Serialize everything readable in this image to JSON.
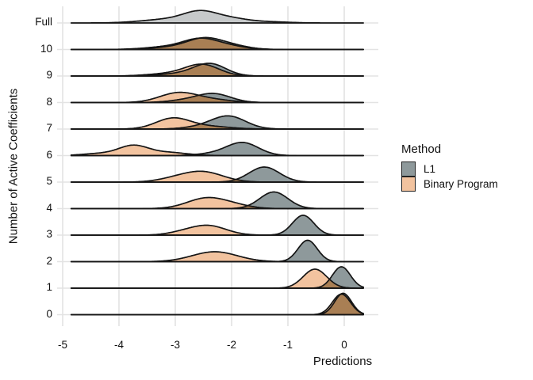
{
  "chart_data": {
    "type": "area",
    "subtype": "ridgeline-density",
    "title": "",
    "xlabel": "Predictions",
    "ylabel": "Number of Active Coefficients",
    "x_ticks": [
      -5,
      -4,
      -3,
      -2,
      -1,
      0
    ],
    "xlim": [
      -5.2,
      0.6
    ],
    "x_data_extent": [
      -4.85,
      0.34
    ],
    "grid": true,
    "legend": {
      "title": "Method",
      "position": "right",
      "entries": [
        {
          "label": "L1",
          "color": "#8E999B"
        },
        {
          "label": "Binary Program",
          "color": "#F2C39F"
        }
      ]
    },
    "colors": {
      "l1": "#8E999B",
      "binary": "#F2C39F",
      "overlap": "#A97F54",
      "full": "#C6C9CA",
      "grid": "#E3E3E3",
      "stroke": "#151515"
    },
    "rows": [
      {
        "label": "Full",
        "series": [
          {
            "method": "Full model",
            "color": "full",
            "components": [
              [
                -2.55,
                0.3,
                13
              ],
              [
                -3.15,
                0.45,
                4.5
              ],
              [
                -2.0,
                0.3,
                5
              ],
              [
                -1.35,
                0.35,
                1.5
              ]
            ]
          }
        ]
      },
      {
        "label": "10",
        "series": [
          {
            "method": "L1",
            "color": "l1",
            "components": [
              [
                -2.48,
                0.3,
                12.5
              ],
              [
                -3.0,
                0.4,
                3
              ],
              [
                -2.0,
                0.3,
                4.5
              ]
            ]
          },
          {
            "method": "Binary Program",
            "color": "binary",
            "components": [
              [
                -2.55,
                0.3,
                12
              ],
              [
                -3.1,
                0.4,
                3.5
              ],
              [
                -2.05,
                0.3,
                4
              ]
            ]
          }
        ]
      },
      {
        "label": "9",
        "series": [
          {
            "method": "L1",
            "color": "l1",
            "components": [
              [
                -2.38,
                0.28,
                15
              ],
              [
                -2.9,
                0.35,
                3
              ]
            ]
          },
          {
            "method": "Binary Program",
            "color": "binary",
            "components": [
              [
                -2.52,
                0.3,
                14
              ],
              [
                -3.1,
                0.38,
                3
              ]
            ]
          }
        ]
      },
      {
        "label": "8",
        "series": [
          {
            "method": "L1",
            "color": "l1",
            "components": [
              [
                -2.32,
                0.3,
                11
              ],
              [
                -2.85,
                0.3,
                2.5
              ]
            ]
          },
          {
            "method": "Binary Program",
            "color": "binary",
            "components": [
              [
                -2.95,
                0.33,
                12
              ],
              [
                -2.35,
                0.35,
                3.5
              ]
            ]
          }
        ]
      },
      {
        "label": "7",
        "series": [
          {
            "method": "L1",
            "color": "l1",
            "components": [
              [
                -2.05,
                0.3,
                16
              ],
              [
                -2.55,
                0.3,
                2.5
              ]
            ]
          },
          {
            "method": "Binary Program",
            "color": "binary",
            "components": [
              [
                -3.05,
                0.3,
                13
              ],
              [
                -2.45,
                0.4,
                3.5
              ]
            ]
          }
        ]
      },
      {
        "label": "6",
        "series": [
          {
            "method": "L1",
            "color": "l1",
            "components": [
              [
                -1.8,
                0.28,
                16
              ],
              [
                -2.3,
                0.3,
                2.5
              ]
            ]
          },
          {
            "method": "Binary Program",
            "color": "binary",
            "components": [
              [
                -3.75,
                0.26,
                12
              ],
              [
                -4.35,
                0.3,
                2.5
              ],
              [
                -3.15,
                0.35,
                4
              ]
            ]
          }
        ]
      },
      {
        "label": "5",
        "series": [
          {
            "method": "L1",
            "color": "l1",
            "components": [
              [
                -1.42,
                0.27,
                19
              ]
            ]
          },
          {
            "method": "Binary Program",
            "color": "binary",
            "components": [
              [
                -2.52,
                0.36,
                13
              ],
              [
                -3.05,
                0.3,
                3
              ]
            ]
          }
        ]
      },
      {
        "label": "4",
        "series": [
          {
            "method": "L1",
            "color": "l1",
            "components": [
              [
                -1.25,
                0.25,
                21
              ]
            ]
          },
          {
            "method": "Binary Program",
            "color": "binary",
            "components": [
              [
                -2.45,
                0.34,
                13
              ],
              [
                -1.95,
                0.3,
                3.5
              ]
            ]
          }
        ]
      },
      {
        "label": "3",
        "series": [
          {
            "method": "L1",
            "color": "l1",
            "components": [
              [
                -0.73,
                0.19,
                25
              ]
            ]
          },
          {
            "method": "Binary Program",
            "color": "binary",
            "components": [
              [
                -2.42,
                0.32,
                12
              ],
              [
                -2.9,
                0.26,
                2.5
              ]
            ]
          }
        ]
      },
      {
        "label": "2",
        "series": [
          {
            "method": "L1",
            "color": "l1",
            "components": [
              [
                -0.65,
                0.17,
                27
              ]
            ]
          },
          {
            "method": "Binary Program",
            "color": "binary",
            "components": [
              [
                -2.3,
                0.4,
                12.5
              ]
            ]
          }
        ]
      },
      {
        "label": "1",
        "series": [
          {
            "method": "L1",
            "color": "l1",
            "components": [
              [
                -0.05,
                0.16,
                27
              ]
            ]
          },
          {
            "method": "Binary Program",
            "color": "binary",
            "components": [
              [
                -0.52,
                0.21,
                24
              ]
            ]
          }
        ]
      },
      {
        "label": "0",
        "series": [
          {
            "method": "L1",
            "color": "l1",
            "components": [
              [
                -0.02,
                0.15,
                27
              ]
            ]
          },
          {
            "method": "Binary Program",
            "color": "binary",
            "components": [
              [
                -0.05,
                0.16,
                26
              ]
            ]
          }
        ]
      }
    ]
  }
}
